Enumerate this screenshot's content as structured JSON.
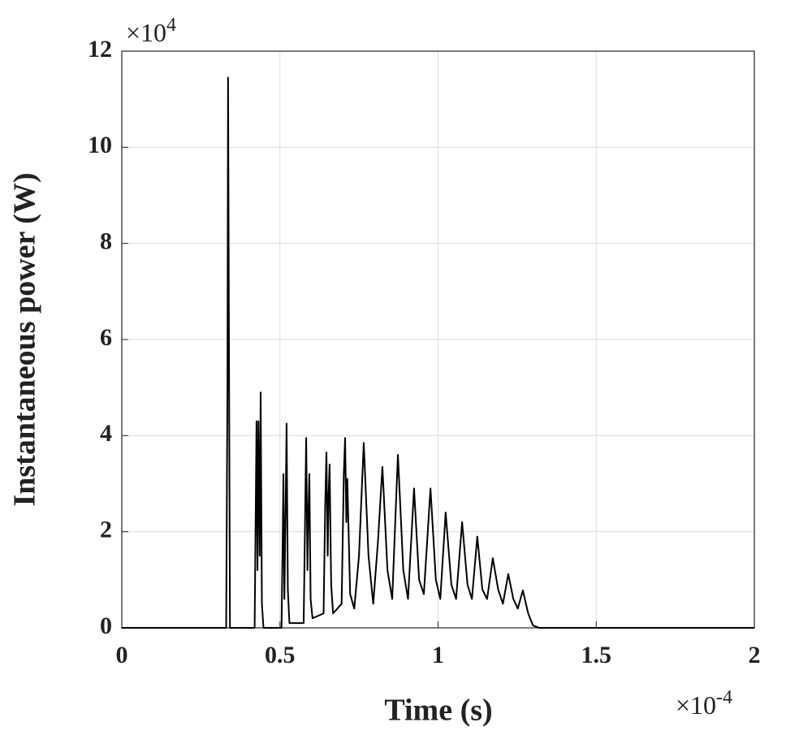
{
  "chart_data": {
    "type": "line",
    "xlabel": "Time (s)",
    "ylabel": "Instantaneous power (W)",
    "xmultiplier": {
      "base": "×10",
      "exponent": "-4"
    },
    "ymultiplier": {
      "base": "×10",
      "exponent": "4"
    },
    "xlim": [
      0,
      2
    ],
    "ylim": [
      0,
      12
    ],
    "xticks": [
      0,
      0.5,
      1,
      1.5,
      2
    ],
    "yticks": [
      0,
      2,
      4,
      6,
      8,
      10,
      12
    ],
    "grid": true,
    "series": [
      {
        "color": "#000000",
        "x": [
          0,
          0.33,
          0.334,
          0.336,
          0.338,
          0.342,
          0.42,
          0.426,
          0.429,
          0.432,
          0.436,
          0.439,
          0.443,
          0.448,
          0.505,
          0.509,
          0.511,
          0.514,
          0.518,
          0.521,
          0.525,
          0.53,
          0.575,
          0.58,
          0.583,
          0.587,
          0.59,
          0.593,
          0.597,
          0.603,
          0.638,
          0.643,
          0.647,
          0.651,
          0.654,
          0.657,
          0.662,
          0.668,
          0.695,
          0.702,
          0.706,
          0.71,
          0.713,
          0.716,
          0.722,
          0.735,
          0.75,
          0.765,
          0.78,
          0.795,
          0.81,
          0.824,
          0.84,
          0.855,
          0.873,
          0.89,
          0.905,
          0.924,
          0.94,
          0.955,
          0.976,
          0.993,
          1.007,
          1.024,
          1.042,
          1.057,
          1.076,
          1.093,
          1.107,
          1.124,
          1.14,
          1.155,
          1.173,
          1.19,
          1.205,
          1.222,
          1.238,
          1.252,
          1.268,
          1.285,
          1.3,
          1.32,
          1.34,
          2
        ],
        "values": [
          0,
          0,
          5,
          11.45,
          7.5,
          0,
          0,
          4.3,
          1.2,
          4.3,
          1.5,
          4.9,
          0.5,
          0,
          0,
          2,
          3.2,
          0.6,
          2.5,
          4.25,
          0.8,
          0.1,
          0.1,
          2.5,
          3.95,
          1.2,
          2.4,
          3.2,
          0.6,
          0.2,
          0.3,
          2.5,
          3.65,
          1.5,
          2.8,
          3.4,
          0.9,
          0.3,
          0.5,
          3.2,
          3.95,
          2.2,
          3.1,
          2.3,
          0.7,
          0.4,
          1.5,
          3.85,
          1.5,
          0.5,
          1.8,
          3.35,
          1.2,
          0.6,
          3.6,
          1.2,
          0.6,
          2.9,
          1.0,
          0.7,
          2.9,
          1.0,
          0.6,
          2.4,
          0.9,
          0.6,
          2.2,
          0.9,
          0.6,
          1.9,
          0.8,
          0.6,
          1.45,
          0.8,
          0.5,
          1.12,
          0.6,
          0.4,
          0.78,
          0.3,
          0.05,
          0,
          0,
          0
        ]
      }
    ]
  }
}
